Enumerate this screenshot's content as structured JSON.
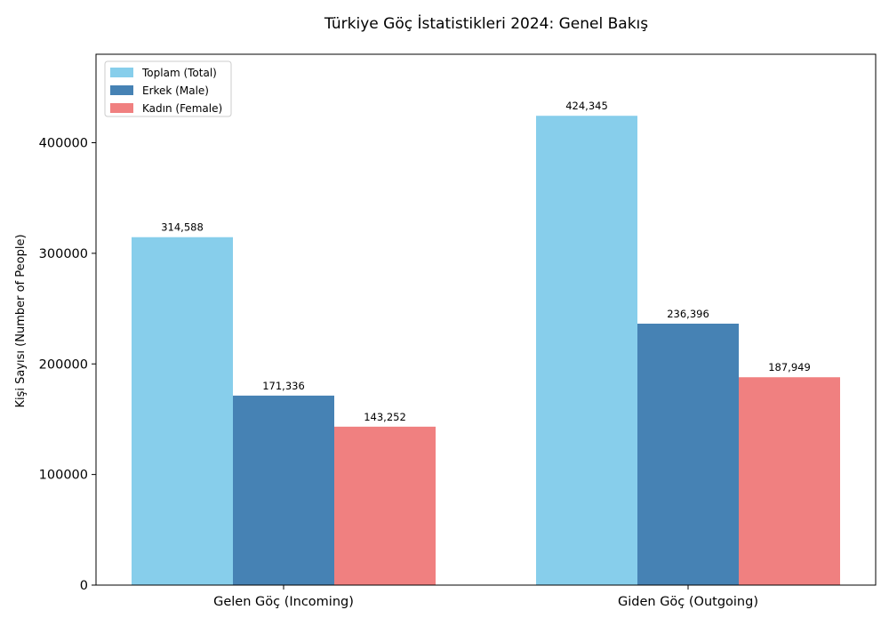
{
  "chart_data": {
    "type": "bar",
    "title": "Türkiye Göç İstatistikleri 2024: Genel Bakış",
    "xlabel": "",
    "ylabel": "Kişi Sayısı (Number of People)",
    "categories": [
      "Gelen Göç (Incoming)",
      "Giden Göç (Outgoing)"
    ],
    "series": [
      {
        "name": "Toplam (Total)",
        "color": "#87ceeb",
        "values": [
          314588,
          424345
        ],
        "labels": [
          "314,588",
          "424,345"
        ]
      },
      {
        "name": "Erkek (Male)",
        "color": "#4682b4",
        "values": [
          171336,
          236396
        ],
        "labels": [
          "171,336",
          "236,396"
        ]
      },
      {
        "name": "Kadın (Female)",
        "color": "#f08080",
        "values": [
          143252,
          187949
        ],
        "labels": [
          "143,252",
          "187,949"
        ]
      }
    ],
    "ylim": [
      0,
      480000
    ],
    "yticks": [
      0,
      100000,
      200000,
      300000,
      400000
    ],
    "ytick_labels": [
      "0",
      "100000",
      "200000",
      "300000",
      "400000"
    ],
    "grid": false,
    "legend_position": "top-left"
  }
}
